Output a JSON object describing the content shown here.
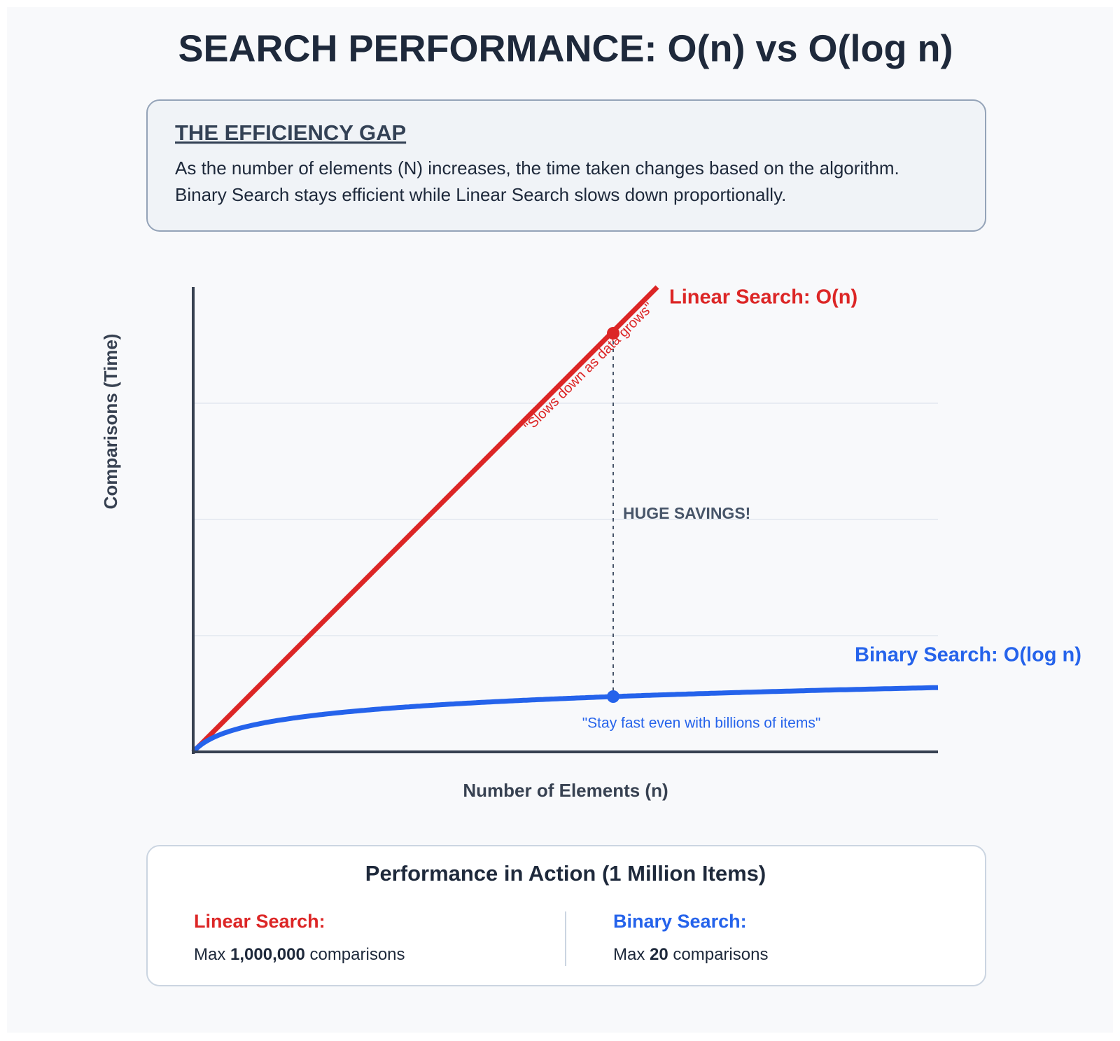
{
  "header": {
    "title": "SEARCH PERFORMANCE: O(n) vs O(log n)"
  },
  "intro": {
    "heading": "THE EFFICIENCY GAP",
    "lines": [
      "As the number of elements (N) increases, the time taken changes based on the algorithm.",
      "Binary Search stays efficient while Linear Search slows down proportionally."
    ]
  },
  "diagram": {
    "y_axis_label": "Comparisons (Time)",
    "x_axis_label": "Number of Elements (n)",
    "linear_label": "Linear Search: O(n)",
    "binary_label": "Binary Search: O(log n)",
    "linear_note": "\"Slows down as data grows\"",
    "binary_note": "\"Stay fast even with billions of items\"",
    "gap_label": "HUGE SAVINGS!"
  },
  "summary": {
    "title": "Performance in Action (1 Million Items)",
    "linear": {
      "name": "Linear Search:",
      "prefix": "Max ",
      "count": "1,000,000",
      "suffix": " comparisons"
    },
    "binary": {
      "name": "Binary Search:",
      "prefix": "Max ",
      "count": "20",
      "suffix": " comparisons"
    }
  }
}
